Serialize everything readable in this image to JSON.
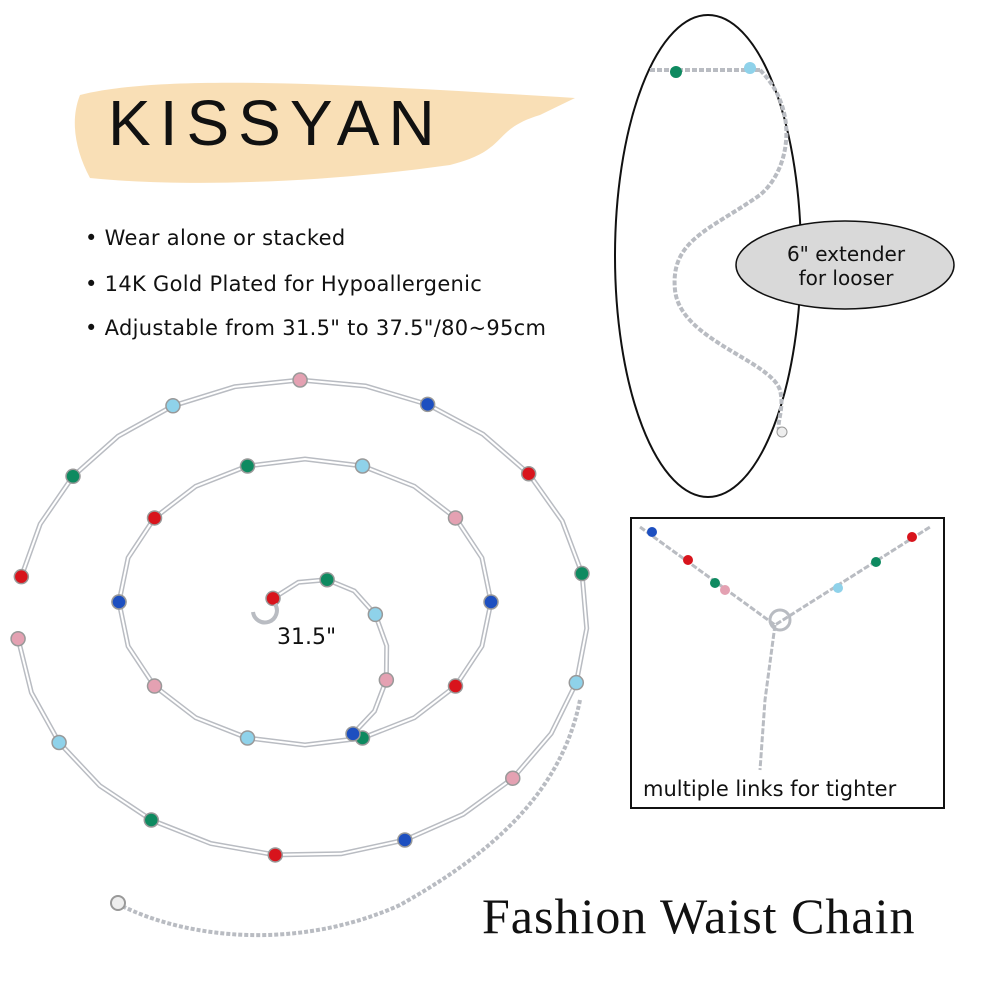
{
  "brand": "KISSYAN",
  "features": [
    "• Wear alone or stacked",
    "• 14K Gold Plated for Hypoallergenic",
    "• Adjustable from 31.5\" to 37.5\"/80~95cm"
  ],
  "length_label": "31.5\"",
  "extender_callout": {
    "line1": "6\" extender",
    "line2": "for looser"
  },
  "links_caption": "multiple links for tighter",
  "product_title": "Fashion Waist Chain",
  "colors": {
    "brush": "#f7d7a4",
    "callout_fill": "#d9d9d9",
    "chain_silver": "#b9bcc2",
    "beads": [
      "#d8141c",
      "#0e8a60",
      "#8fd2ea",
      "#e4a1b2",
      "#1d4fc0"
    ]
  }
}
